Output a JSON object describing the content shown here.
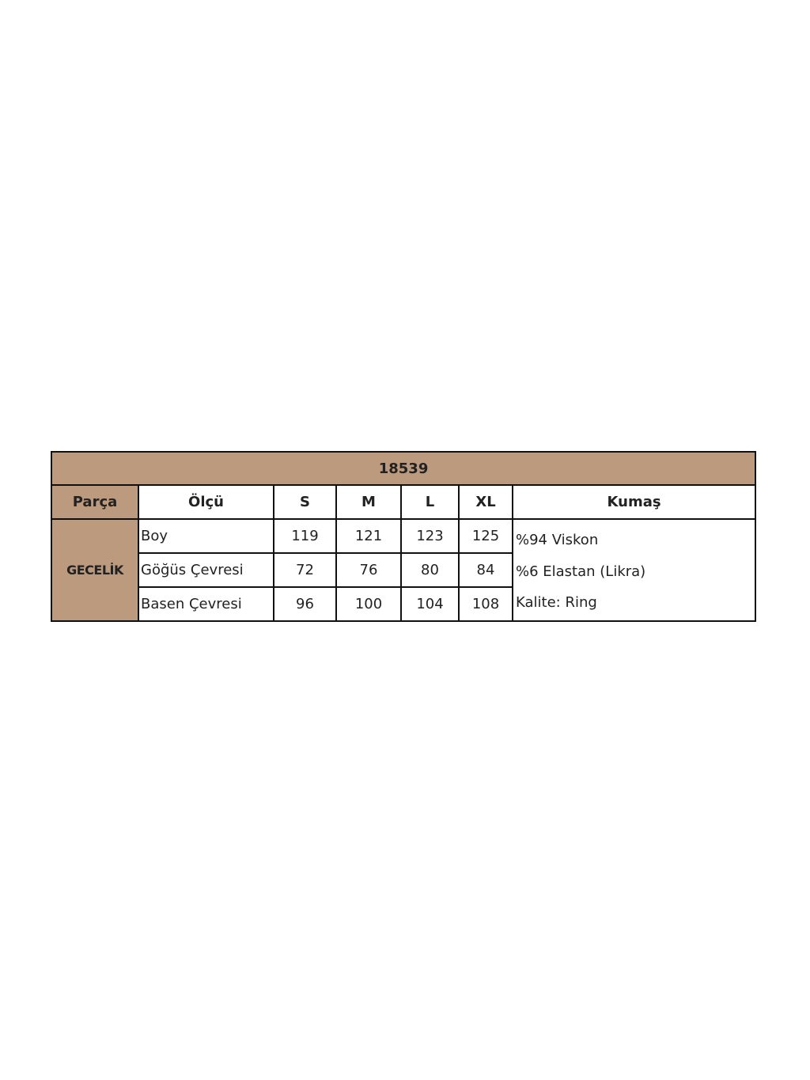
{
  "title": "18539",
  "colors": {
    "header_fill": "#bc9a7d",
    "border": "#111111"
  },
  "headers": {
    "part": "Parça",
    "measure": "Ölçü",
    "sizes": [
      "S",
      "M",
      "L",
      "XL"
    ],
    "fabric": "Kumaş"
  },
  "part": "GECELİK",
  "rows": [
    {
      "label": "Boy",
      "values": [
        "119",
        "121",
        "123",
        "125"
      ]
    },
    {
      "label": "Göğüs Çevresi",
      "values": [
        "72",
        "76",
        "80",
        "84"
      ]
    },
    {
      "label": "Basen Çevresi",
      "values": [
        "96",
        "100",
        "104",
        "108"
      ]
    }
  ],
  "fabric": [
    "%94 Viskon",
    "%6 Elastan (Likra)",
    "Kalite: Ring"
  ]
}
